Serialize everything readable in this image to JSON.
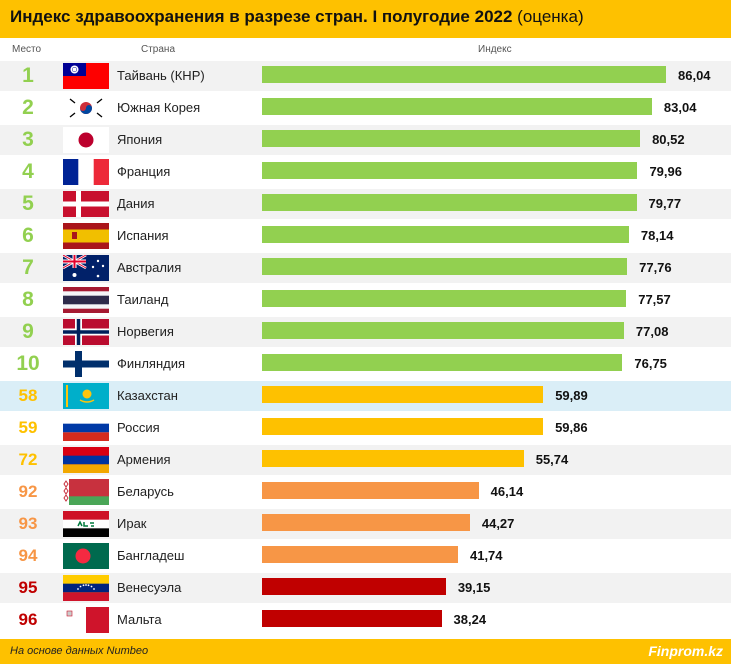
{
  "header": {
    "title": "Индекс здравоохранения в разрезе стран. I полугодие 2022",
    "subtitle": "(оценка)"
  },
  "columns": {
    "rank": "Место",
    "country": "Страна",
    "index": "Индекс"
  },
  "footer": {
    "source": "На основе данных Numbeo",
    "brand": "Finprom.kz"
  },
  "colors": {
    "top": "#92d050",
    "mid": "#fec100",
    "low": "#f79646",
    "bottom": "#c00000"
  },
  "chart_data": {
    "type": "bar",
    "orientation": "horizontal",
    "title": "Индекс здравоохранения в разрезе стран. I полугодие 2022 (оценка)",
    "xlabel": "Индекс",
    "ylabel": "Страна",
    "categories": [
      "Тайвань (КНР)",
      "Южная Корея",
      "Япония",
      "Франция",
      "Дания",
      "Испания",
      "Австралия",
      "Таиланд",
      "Норвегия",
      "Финляндия",
      "Казахстан",
      "Россия",
      "Армения",
      "Беларусь",
      "Ирак",
      "Бангладеш",
      "Венесуэла",
      "Мальта"
    ],
    "ranks": [
      "1",
      "2",
      "3",
      "4",
      "5",
      "6",
      "7",
      "8",
      "9",
      "10",
      "58",
      "59",
      "72",
      "92",
      "93",
      "94",
      "95",
      "96"
    ],
    "values": [
      86.04,
      83.04,
      80.52,
      79.96,
      79.77,
      78.14,
      77.76,
      77.57,
      77.08,
      76.75,
      59.89,
      59.86,
      55.74,
      46.14,
      44.27,
      41.74,
      39.15,
      38.24
    ],
    "value_labels": [
      "86,04",
      "83,04",
      "80,52",
      "79,96",
      "79,77",
      "78,14",
      "77,76",
      "77,57",
      "77,08",
      "76,75",
      "59,89",
      "59,86",
      "55,74",
      "46,14",
      "44,27",
      "41,74",
      "39,15",
      "38,24"
    ],
    "groups": [
      "top",
      "top",
      "top",
      "top",
      "top",
      "top",
      "top",
      "top",
      "top",
      "top",
      "mid",
      "mid",
      "mid",
      "low",
      "low",
      "low",
      "bottom",
      "bottom"
    ],
    "flags": [
      "taiwan-flag-icon",
      "south-korea-flag-icon",
      "japan-flag-icon",
      "france-flag-icon",
      "denmark-flag-icon",
      "spain-flag-icon",
      "australia-flag-icon",
      "thailand-flag-icon",
      "norway-flag-icon",
      "finland-flag-icon",
      "kazakhstan-flag-icon",
      "russia-flag-icon",
      "armenia-flag-icon",
      "belarus-flag-icon",
      "iraq-flag-icon",
      "bangladesh-flag-icon",
      "venezuela-flag-icon",
      "malta-flag-icon"
    ],
    "highlight_index": 10,
    "xlim": [
      0,
      86.04
    ],
    "grid": false,
    "legend": "none"
  }
}
